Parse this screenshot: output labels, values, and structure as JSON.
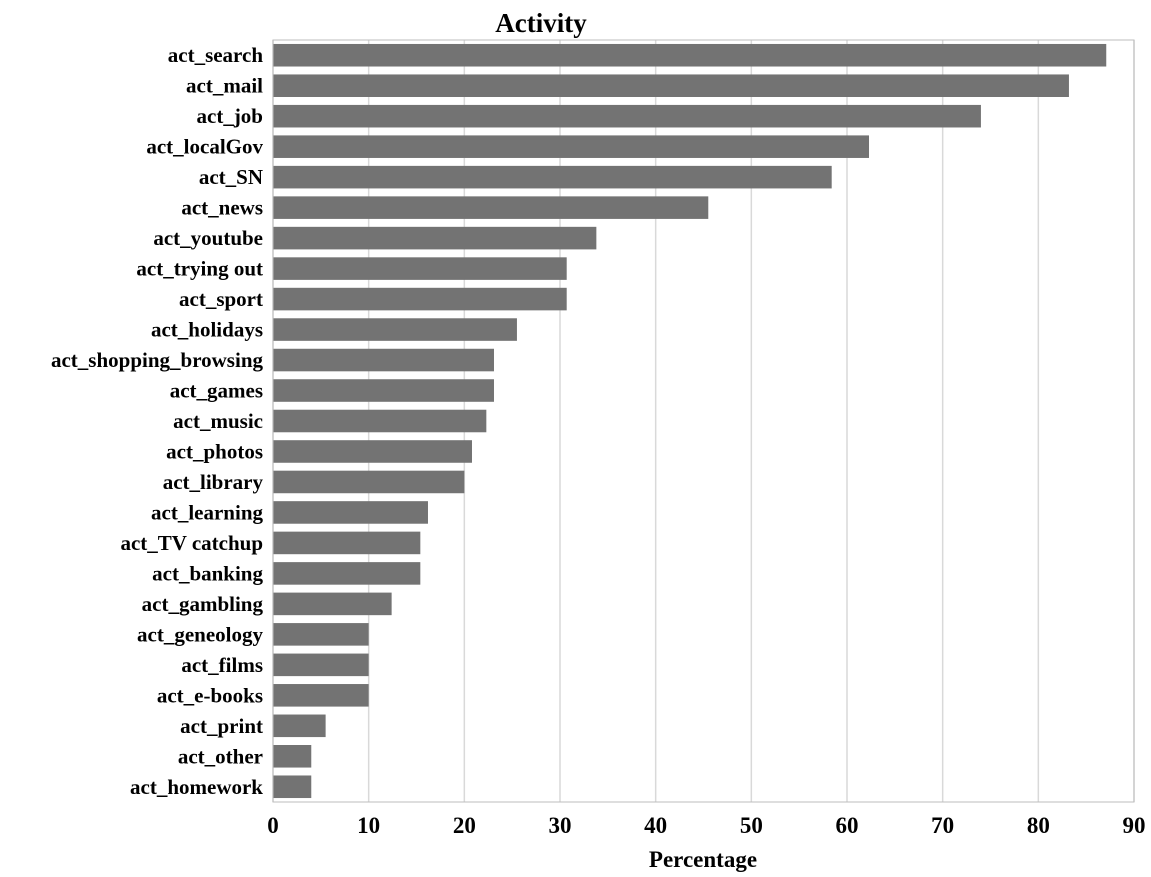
{
  "chart_data": {
    "type": "bar",
    "orientation": "horizontal",
    "title": "Activity",
    "xlabel": "Percentage",
    "ylabel": "",
    "xlim": [
      0,
      90
    ],
    "xticks": [
      0,
      10,
      20,
      30,
      40,
      50,
      60,
      70,
      80,
      90
    ],
    "grid": true,
    "bar_color": "#737373",
    "grid_color": "#d9d9d9",
    "categories": [
      "act_search",
      "act_mail",
      "act_job",
      "act_localGov",
      "act_SN",
      "act_news",
      "act_youtube",
      "act_trying out",
      "act_sport",
      "act_holidays",
      "act_shopping_browsing",
      "act_games",
      "act_music",
      "act_photos",
      "act_library",
      "act_learning",
      "act_TV catchup",
      "act_banking",
      "act_gambling",
      "act_geneology",
      "act_films",
      "act_e-books",
      "act_print",
      "act_other",
      "act_homework"
    ],
    "values": [
      87.1,
      83.2,
      74.0,
      62.3,
      58.4,
      45.5,
      33.8,
      30.7,
      30.7,
      25.5,
      23.1,
      23.1,
      22.3,
      20.8,
      20.0,
      16.2,
      15.4,
      15.4,
      12.4,
      10.0,
      10.0,
      10.0,
      5.5,
      4.0,
      4.0
    ]
  }
}
